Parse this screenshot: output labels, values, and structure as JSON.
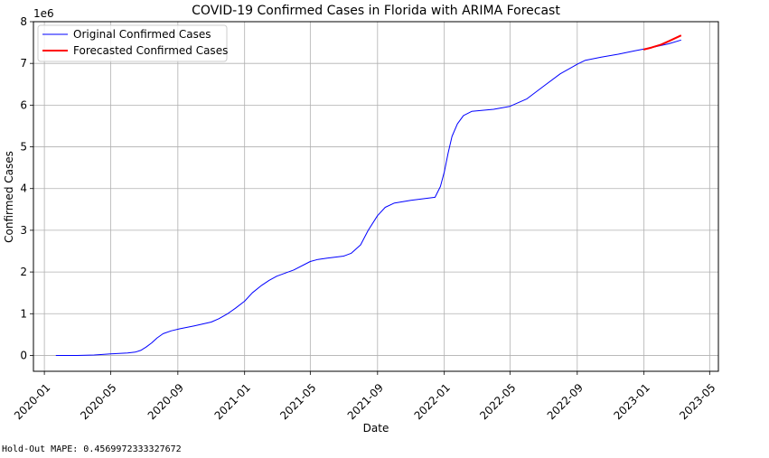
{
  "chart_data": {
    "type": "line",
    "title": "COVID-19 Confirmed Cases in Florida with ARIMA Forecast",
    "xlabel": "Date",
    "ylabel": "Confirmed Cases",
    "y_scale_label": "1e6",
    "y_ticks": [
      0,
      1,
      2,
      3,
      4,
      5,
      6,
      7,
      8
    ],
    "y_tick_labels": [
      "0",
      "1",
      "2",
      "3",
      "4",
      "5",
      "6",
      "7",
      "8"
    ],
    "x_ticks": [
      "2020-01",
      "2020-05",
      "2020-09",
      "2021-01",
      "2021-05",
      "2021-09",
      "2022-01",
      "2022-05",
      "2022-09",
      "2023-01",
      "2023-05"
    ],
    "xlim": [
      "2019-12-12",
      "2023-05-17"
    ],
    "ylim": [
      -0.38,
      8.0
    ],
    "grid": true,
    "legend_position": "top-left",
    "series": [
      {
        "name": "Original Confirmed Cases",
        "color": "#0000ff",
        "points": [
          [
            "2020-01-22",
            0.0
          ],
          [
            "2020-03-01",
            0.0
          ],
          [
            "2020-04-01",
            0.01
          ],
          [
            "2020-05-01",
            0.035
          ],
          [
            "2020-06-01",
            0.06
          ],
          [
            "2020-06-15",
            0.08
          ],
          [
            "2020-06-25",
            0.12
          ],
          [
            "2020-07-05",
            0.2
          ],
          [
            "2020-07-15",
            0.3
          ],
          [
            "2020-07-25",
            0.42
          ],
          [
            "2020-08-05",
            0.52
          ],
          [
            "2020-08-20",
            0.59
          ],
          [
            "2020-09-05",
            0.64
          ],
          [
            "2020-10-01",
            0.71
          ],
          [
            "2020-11-01",
            0.8
          ],
          [
            "2020-11-15",
            0.88
          ],
          [
            "2020-12-01",
            1.0
          ],
          [
            "2020-12-15",
            1.13
          ],
          [
            "2021-01-01",
            1.3
          ],
          [
            "2021-01-15",
            1.5
          ],
          [
            "2021-02-01",
            1.68
          ],
          [
            "2021-02-15",
            1.8
          ],
          [
            "2021-03-01",
            1.9
          ],
          [
            "2021-04-01",
            2.05
          ],
          [
            "2021-05-01",
            2.25
          ],
          [
            "2021-05-15",
            2.3
          ],
          [
            "2021-06-01",
            2.33
          ],
          [
            "2021-07-01",
            2.38
          ],
          [
            "2021-07-15",
            2.45
          ],
          [
            "2021-08-01",
            2.65
          ],
          [
            "2021-08-15",
            3.0
          ],
          [
            "2021-09-01",
            3.35
          ],
          [
            "2021-09-15",
            3.55
          ],
          [
            "2021-10-01",
            3.65
          ],
          [
            "2021-11-01",
            3.72
          ],
          [
            "2021-12-15",
            3.79
          ],
          [
            "2021-12-25",
            4.05
          ],
          [
            "2022-01-01",
            4.4
          ],
          [
            "2022-01-08",
            4.85
          ],
          [
            "2022-01-15",
            5.25
          ],
          [
            "2022-01-25",
            5.55
          ],
          [
            "2022-02-05",
            5.75
          ],
          [
            "2022-02-20",
            5.85
          ],
          [
            "2022-04-01",
            5.9
          ],
          [
            "2022-05-01",
            5.97
          ],
          [
            "2022-06-01",
            6.15
          ],
          [
            "2022-07-01",
            6.45
          ],
          [
            "2022-08-01",
            6.75
          ],
          [
            "2022-09-01",
            6.98
          ],
          [
            "2022-09-15",
            7.07
          ],
          [
            "2022-10-15",
            7.15
          ],
          [
            "2022-11-15",
            7.22
          ],
          [
            "2022-12-15",
            7.3
          ],
          [
            "2023-01-15",
            7.38
          ],
          [
            "2023-02-15",
            7.47
          ],
          [
            "2023-03-10",
            7.56
          ]
        ]
      },
      {
        "name": "Forecasted Confirmed Cases",
        "color": "#ff0000",
        "points": [
          [
            "2022-12-31",
            7.33
          ],
          [
            "2023-01-15",
            7.38
          ],
          [
            "2023-02-01",
            7.45
          ],
          [
            "2023-02-15",
            7.53
          ],
          [
            "2023-03-10",
            7.67
          ]
        ]
      }
    ]
  },
  "footer_text": "Hold-Out MAPE: 0.4569972333327672"
}
